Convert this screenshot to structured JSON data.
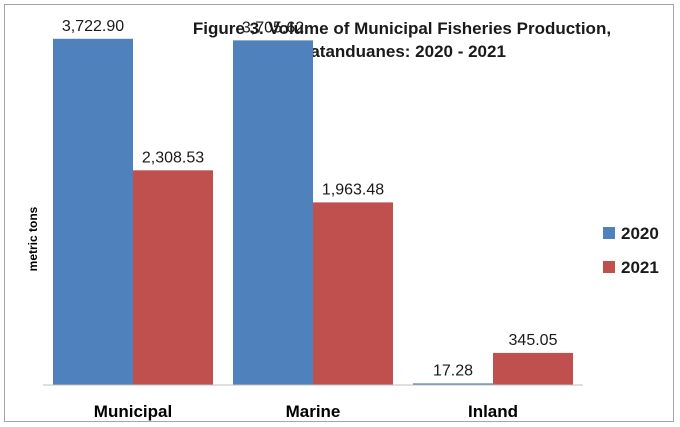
{
  "chart_data": {
    "type": "bar",
    "title_line1": "Figure 3. Volume of Municipal Fisheries Production,",
    "title_line2": "Catanduanes: 2020 - 2021",
    "xlabel": "",
    "ylabel": "metric tons",
    "categories": [
      "Municipal",
      "Marine",
      "Inland"
    ],
    "series": [
      {
        "name": "2020",
        "color": "#4f81bd",
        "values": [
          3722.9,
          3705.62,
          17.28
        ],
        "labels": [
          "3,722.90",
          "3,705.62",
          "17.28"
        ]
      },
      {
        "name": "2021",
        "color": "#c0504d",
        "values": [
          2308.53,
          1963.48,
          345.05
        ],
        "labels": [
          "2,308.53",
          "1,963.48",
          "345.05"
        ]
      }
    ],
    "ylim": [
      0,
      4000
    ],
    "grid": false,
    "legend_position": "right"
  }
}
